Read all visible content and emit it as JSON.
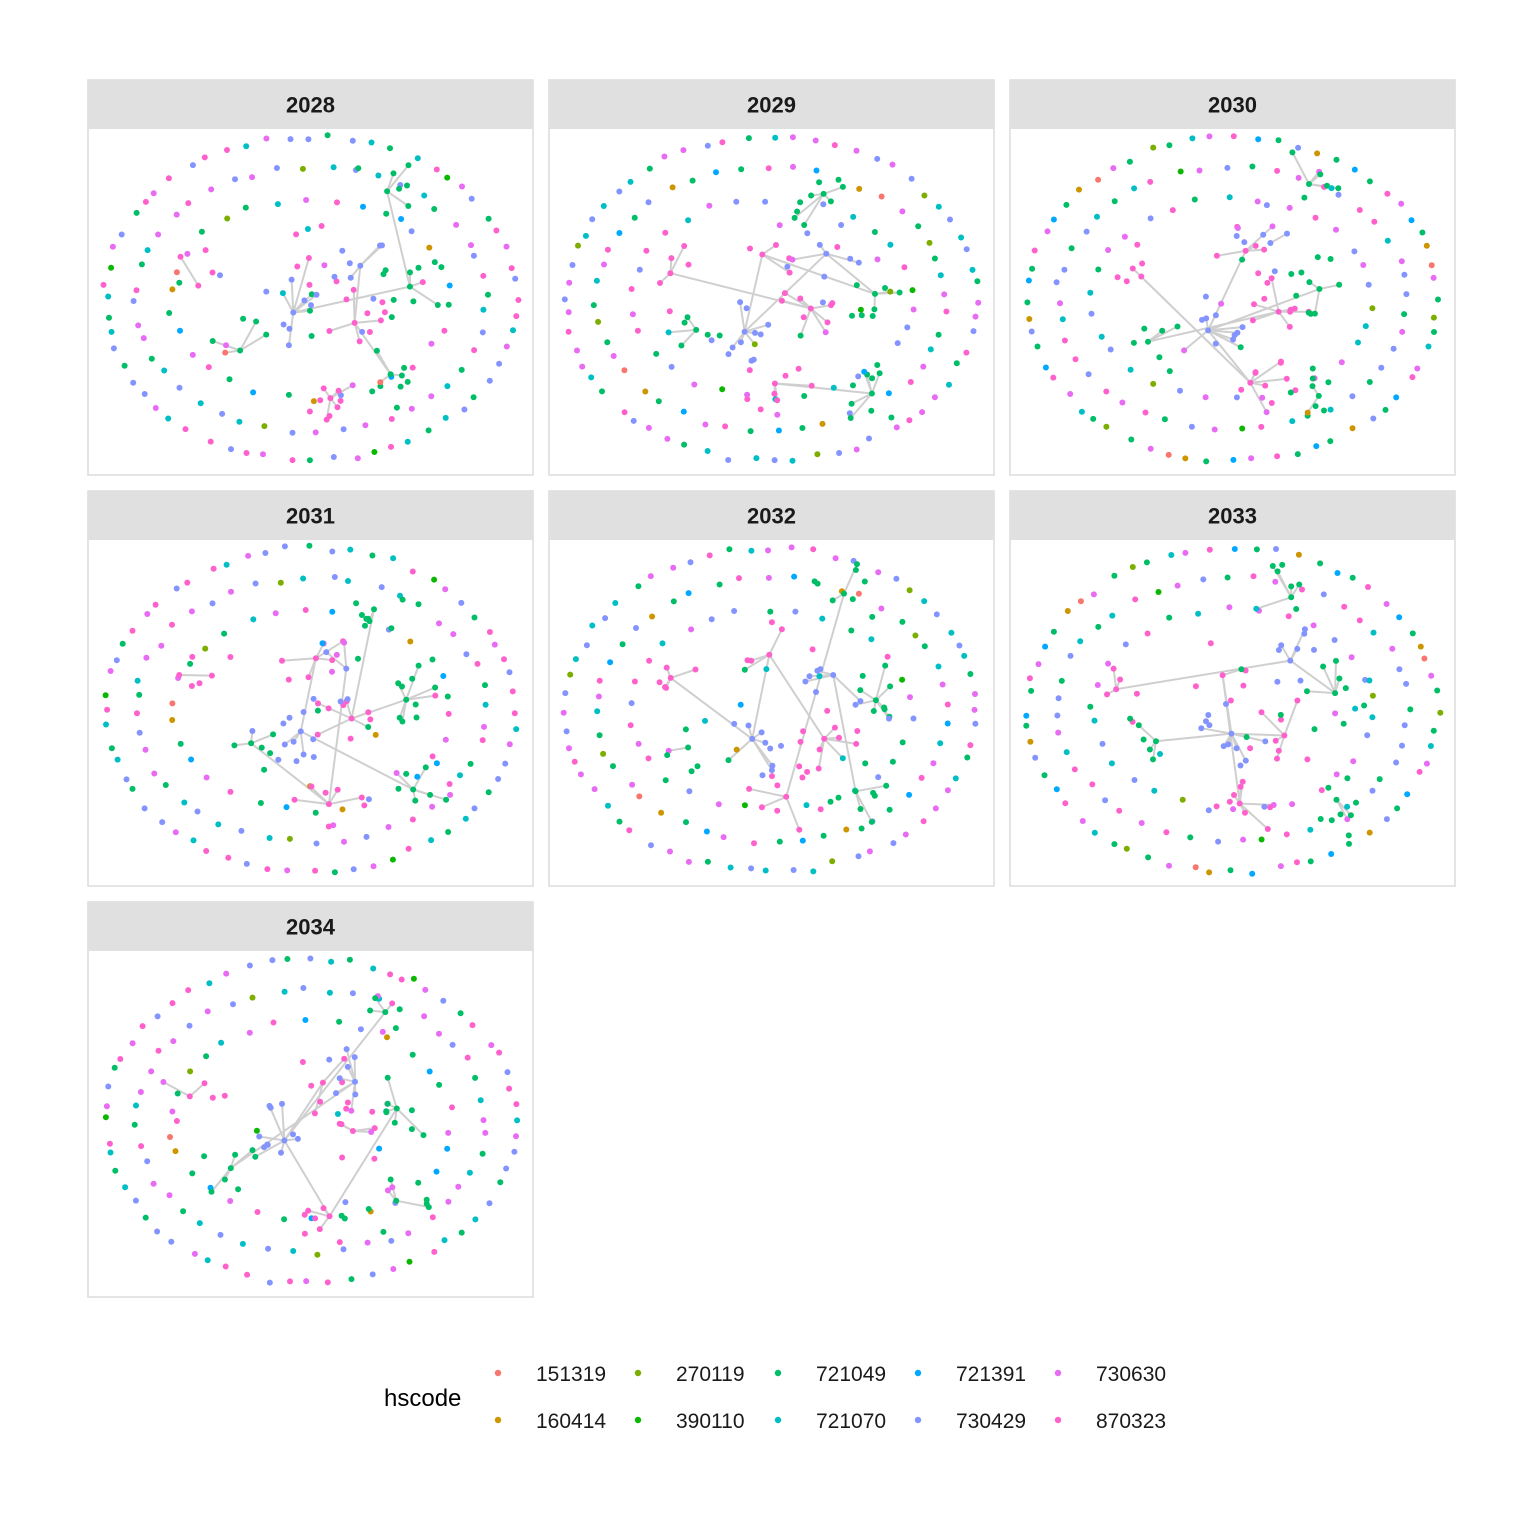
{
  "chart_data": {
    "type": "network-facets",
    "facets": [
      "2028",
      "2029",
      "2030",
      "2031",
      "2032",
      "2033",
      "2034"
    ],
    "legend": {
      "title": "hscode",
      "position": "bottom",
      "entries": [
        {
          "code": "151319",
          "color": "#F8766D"
        },
        {
          "code": "160414",
          "color": "#CD9600"
        },
        {
          "code": "270119",
          "color": "#7CAE00"
        },
        {
          "code": "390110",
          "color": "#0CB702"
        },
        {
          "code": "721049",
          "color": "#00BE67"
        },
        {
          "code": "721070",
          "color": "#00BFC4"
        },
        {
          "code": "721391",
          "color": "#00A9FF"
        },
        {
          "code": "730429",
          "color": "#8494FF"
        },
        {
          "code": "730630",
          "color": "#E76BF3"
        },
        {
          "code": "870323",
          "color": "#FF61CC"
        }
      ]
    },
    "edge_color": "#cfcfcf",
    "panel_background": "#ffffff",
    "strip_background": "#e0e0e0",
    "panel_border": "#dcdcdc"
  }
}
